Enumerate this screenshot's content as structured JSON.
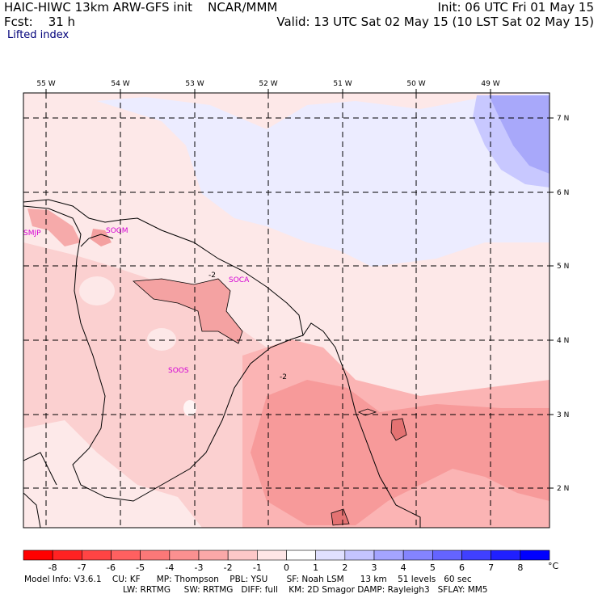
{
  "header": {
    "model_title": "HAIC-HIWC 13km ARW-GFS init    NCAR/MMM",
    "forecast": "Fcst:    31 h",
    "init": "Init: 06 UTC Fri 01 May 15",
    "valid": "Valid: 13 UTC Sat 02 May 15 (10 LST Sat 02 May 15)",
    "field": "Lifted index"
  },
  "map": {
    "longitude_labels": [
      "55 W",
      "54 W",
      "53 W",
      "52 W",
      "51 W",
      "50 W",
      "49 W"
    ],
    "latitude_labels": [
      "7 N",
      "6 N",
      "5 N",
      "4 N",
      "3 N",
      "2 N"
    ],
    "stations": [
      "SMJP",
      "SOGM",
      "SOCA",
      "SOOS"
    ],
    "contour_labels": [
      "-2",
      "-2"
    ]
  },
  "colorbar": {
    "unit": "°C",
    "ticks": [
      "-8",
      "-7",
      "-6",
      "-5",
      "-4",
      "-3",
      "-2",
      "-1",
      "0",
      "1",
      "2",
      "3",
      "4",
      "5",
      "6",
      "7",
      "8"
    ],
    "colors": [
      "#ff0000",
      "#ff2222",
      "#ff4444",
      "#ff6060",
      "#fb7878",
      "#fb9090",
      "#fba8a8",
      "#fdc8c8",
      "#ffe6e6",
      "#ffffff",
      "#e0e0ff",
      "#c4c4ff",
      "#a4a4ff",
      "#8484ff",
      "#6464ff",
      "#4040ff",
      "#2020ff",
      "#0000ff"
    ]
  },
  "footer": {
    "line1": "Model Info: V3.6.1    CU: KF      MP: Thompson    PBL: YSU       SF: Noah LSM      13 km    51 levels   60 sec",
    "line2": "LW: RRTMG     SW: RRTMG   DIFF: full    KM: 2D Smagor DAMP: Rayleigh3   SFLAY: MM5"
  },
  "colors": {
    "land_outline": "#000000",
    "grid_line": "#000000",
    "station_label": "#d400d4"
  }
}
